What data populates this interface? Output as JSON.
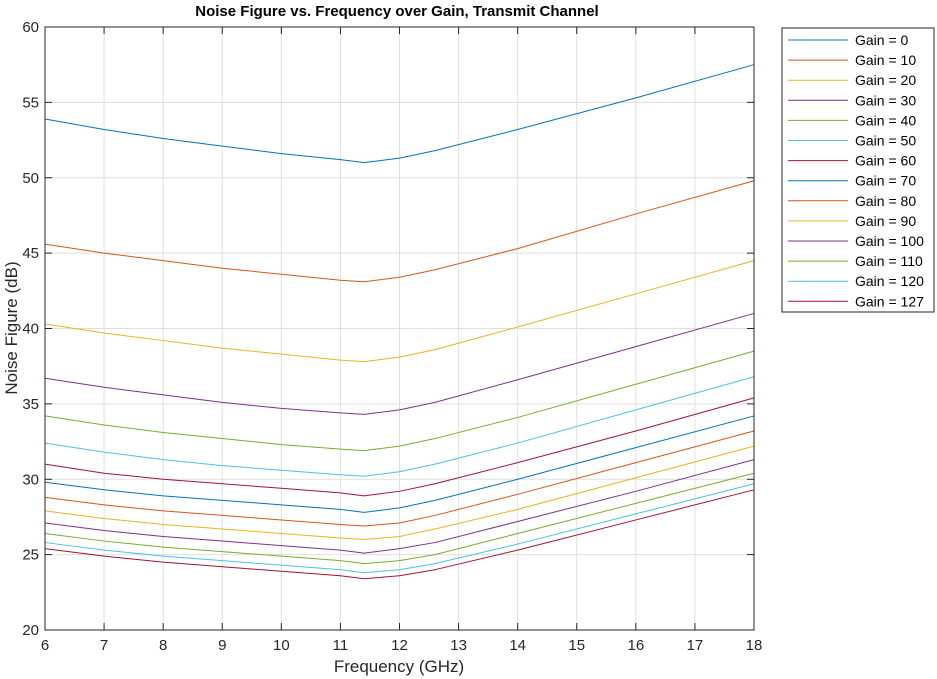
{
  "chart_data": {
    "type": "line",
    "title": "Noise Figure vs. Frequency over Gain, Transmit Channel",
    "xlabel": "Frequency (GHz)",
    "ylabel": "Noise Figure (dB)",
    "xlim": [
      6,
      18
    ],
    "ylim": [
      20,
      60
    ],
    "xticks": [
      6,
      7,
      8,
      9,
      10,
      11,
      12,
      13,
      14,
      15,
      16,
      17,
      18
    ],
    "yticks": [
      20,
      25,
      30,
      35,
      40,
      45,
      50,
      55,
      60
    ],
    "grid": true,
    "legend_position": "outside-top-right",
    "x": [
      6,
      7,
      8,
      9,
      10,
      11,
      11.4,
      12,
      12.6,
      14,
      16,
      18
    ],
    "series": [
      {
        "name": "Gain = 0",
        "color": "#0072BD",
        "values": [
          53.9,
          53.2,
          52.6,
          52.1,
          51.6,
          51.2,
          51.0,
          51.3,
          51.8,
          53.2,
          55.3,
          57.5
        ]
      },
      {
        "name": "Gain = 10",
        "color": "#D95319",
        "values": [
          45.6,
          45.0,
          44.5,
          44.0,
          43.6,
          43.2,
          43.1,
          43.4,
          43.9,
          45.3,
          47.6,
          49.8
        ]
      },
      {
        "name": "Gain = 20",
        "color": "#EDB120",
        "values": [
          40.3,
          39.7,
          39.2,
          38.7,
          38.3,
          37.9,
          37.8,
          38.1,
          38.6,
          40.1,
          42.3,
          44.5
        ]
      },
      {
        "name": "Gain = 30",
        "color": "#7E2F8E",
        "values": [
          36.7,
          36.1,
          35.6,
          35.1,
          34.7,
          34.4,
          34.3,
          34.6,
          35.1,
          36.6,
          38.8,
          41.0
        ]
      },
      {
        "name": "Gain = 40",
        "color": "#77AC30",
        "values": [
          34.2,
          33.6,
          33.1,
          32.7,
          32.3,
          32.0,
          31.9,
          32.2,
          32.7,
          34.1,
          36.3,
          38.5
        ]
      },
      {
        "name": "Gain = 50",
        "color": "#4DBEEE",
        "values": [
          32.4,
          31.8,
          31.3,
          30.9,
          30.6,
          30.3,
          30.2,
          30.5,
          31.0,
          32.4,
          34.6,
          36.8
        ]
      },
      {
        "name": "Gain = 60",
        "color": "#A2142F",
        "values": [
          31.0,
          30.4,
          30.0,
          29.7,
          29.4,
          29.1,
          28.9,
          29.2,
          29.7,
          31.1,
          33.2,
          35.4
        ]
      },
      {
        "name": "Gain = 70",
        "color": "#0072BD",
        "values": [
          29.8,
          29.3,
          28.9,
          28.6,
          28.3,
          28.0,
          27.8,
          28.1,
          28.6,
          30.0,
          32.1,
          34.2
        ]
      },
      {
        "name": "Gain = 80",
        "color": "#D95319",
        "values": [
          28.8,
          28.3,
          27.9,
          27.6,
          27.3,
          27.0,
          26.9,
          27.1,
          27.6,
          29.0,
          31.1,
          33.2
        ]
      },
      {
        "name": "Gain = 90",
        "color": "#EDB120",
        "values": [
          27.9,
          27.4,
          27.0,
          26.7,
          26.4,
          26.1,
          26.0,
          26.2,
          26.7,
          28.0,
          30.1,
          32.2
        ]
      },
      {
        "name": "Gain = 100",
        "color": "#7E2F8E",
        "values": [
          27.1,
          26.6,
          26.2,
          25.9,
          25.6,
          25.3,
          25.1,
          25.4,
          25.8,
          27.2,
          29.2,
          31.3
        ]
      },
      {
        "name": "Gain = 110",
        "color": "#77AC30",
        "values": [
          26.4,
          25.9,
          25.5,
          25.2,
          24.9,
          24.6,
          24.4,
          24.6,
          25.0,
          26.4,
          28.4,
          30.4
        ]
      },
      {
        "name": "Gain = 120",
        "color": "#4DBEEE",
        "values": [
          25.8,
          25.3,
          24.9,
          24.6,
          24.3,
          24.0,
          23.8,
          24.0,
          24.4,
          25.7,
          27.7,
          29.7
        ]
      },
      {
        "name": "Gain = 127",
        "color": "#A2142F",
        "values": [
          25.4,
          24.9,
          24.5,
          24.2,
          23.9,
          23.6,
          23.4,
          23.6,
          24.0,
          25.3,
          27.3,
          29.3
        ]
      }
    ]
  }
}
